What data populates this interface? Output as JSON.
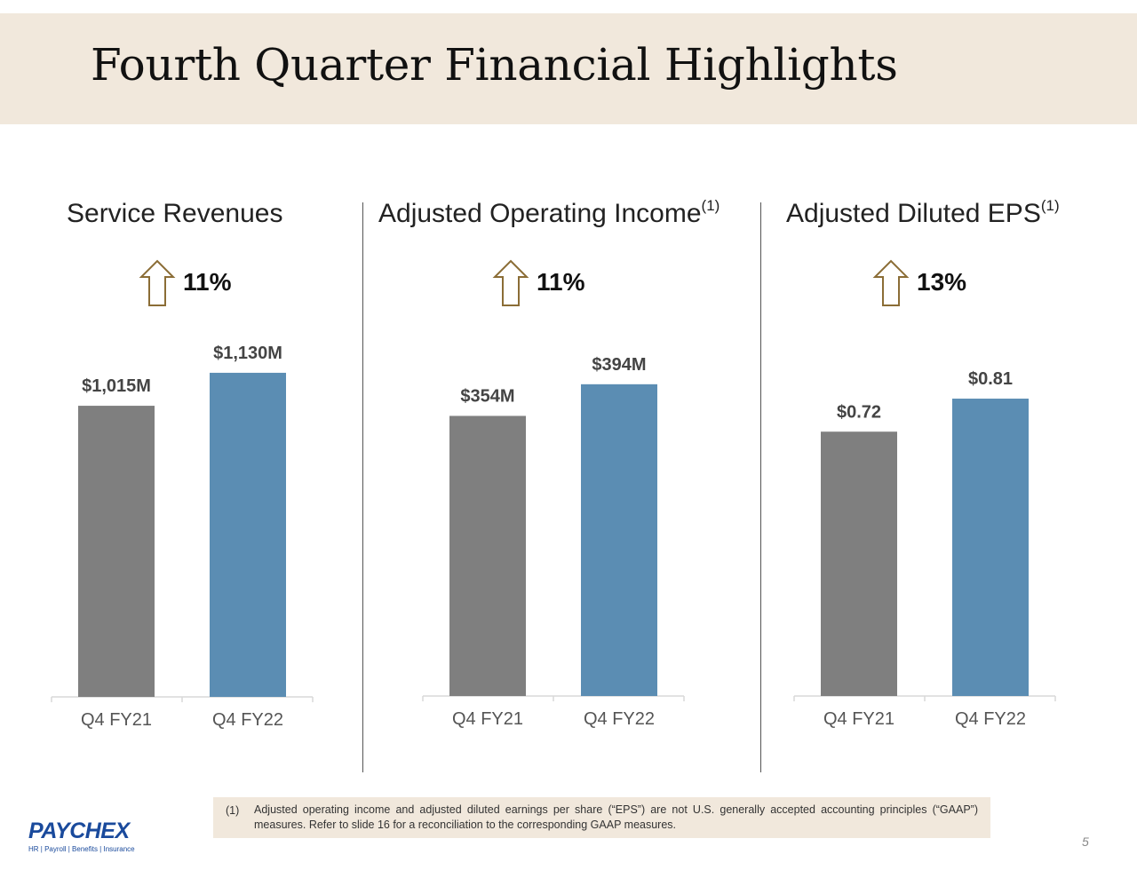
{
  "title": "Fourth Quarter Financial Highlights",
  "colors": {
    "prior_bar": "#7f7f7f",
    "current_bar": "#5b8db3",
    "arrow": "#8b6d36",
    "header_bg": "#f1e8dc"
  },
  "panels": [
    {
      "title": "Service Revenues",
      "sup": "",
      "growth": "11%",
      "arrow_icon": "up-arrow-icon"
    },
    {
      "title": "Adjusted Operating Income",
      "sup": "(1)",
      "growth": "11%",
      "arrow_icon": "up-arrow-icon"
    },
    {
      "title": "Adjusted Diluted EPS",
      "sup": "(1)",
      "growth": "13%",
      "arrow_icon": "up-arrow-icon"
    }
  ],
  "chart_data": [
    {
      "type": "bar",
      "title": "Service Revenues",
      "categories": [
        "Q4 FY21",
        "Q4 FY22"
      ],
      "values": [
        1015,
        1130
      ],
      "labels": [
        "$1,015M",
        "$1,130M"
      ],
      "ylim": [
        0,
        1300
      ]
    },
    {
      "type": "bar",
      "title": "Adjusted Operating Income",
      "categories": [
        "Q4 FY21",
        "Q4 FY22"
      ],
      "values": [
        354,
        394
      ],
      "labels": [
        "$354M",
        "$394M"
      ],
      "ylim": [
        0,
        460
      ]
    },
    {
      "type": "bar",
      "title": "Adjusted Diluted EPS",
      "categories": [
        "Q4 FY21",
        "Q4 FY22"
      ],
      "values": [
        0.72,
        0.81
      ],
      "labels": [
        "$0.72",
        "$0.81"
      ],
      "ylim": [
        0,
        0.96
      ]
    }
  ],
  "footnote": {
    "number": "(1)",
    "text": "Adjusted operating income and adjusted diluted earnings per share (“EPS”) are not U.S. generally accepted accounting principles (“GAAP”) measures.  Refer to slide 16 for a reconciliation to the corresponding GAAP measures."
  },
  "logo": {
    "name": "PAYCHEX",
    "tagline": "HR | Payroll | Benefits | Insurance"
  },
  "page_number": "5"
}
